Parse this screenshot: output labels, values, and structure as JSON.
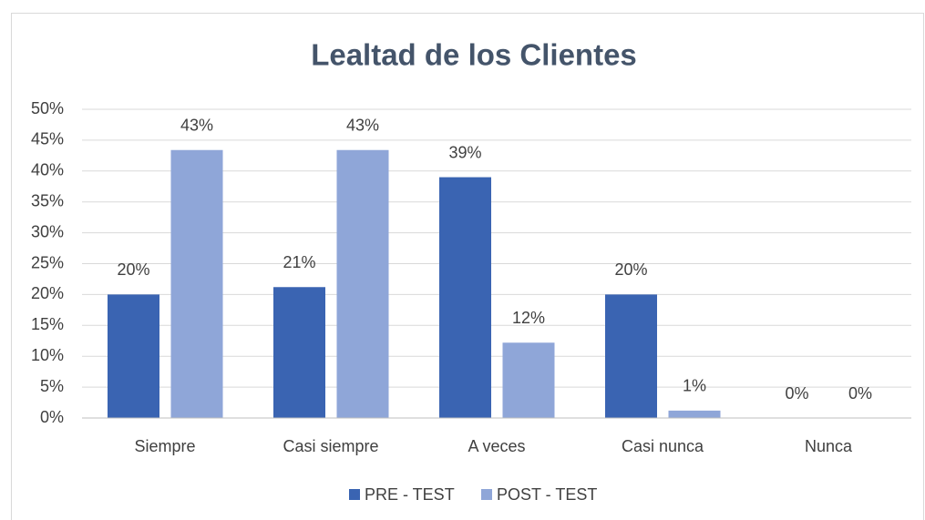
{
  "chart_data": {
    "type": "bar",
    "title": "Lealtad de los Clientes",
    "categories": [
      "Siempre",
      "Casi siempre",
      "A veces",
      "Casi nunca",
      "Nunca"
    ],
    "series": [
      {
        "name": "PRE - TEST",
        "color": "#3a64b2",
        "values": [
          20,
          21.2,
          39,
          20,
          0
        ],
        "value_labels": [
          "20%",
          "21%",
          "39%",
          "20%",
          "0%"
        ]
      },
      {
        "name": "POST - TEST",
        "color": "#8fa6d8",
        "values": [
          43.4,
          43.4,
          12.2,
          1.2,
          0
        ],
        "value_labels": [
          "43%",
          "43%",
          "12%",
          "1%",
          "0%"
        ]
      }
    ],
    "ylim": [
      0,
      50
    ],
    "yticks": [
      {
        "value": 0,
        "label": "0%"
      },
      {
        "value": 5,
        "label": "5%"
      },
      {
        "value": 10,
        "label": "10%"
      },
      {
        "value": 15,
        "label": "15%"
      },
      {
        "value": 20,
        "label": "20%"
      },
      {
        "value": 25,
        "label": "25%"
      },
      {
        "value": 30,
        "label": "30%"
      },
      {
        "value": 35,
        "label": "35%"
      },
      {
        "value": 40,
        "label": "40%"
      },
      {
        "value": 45,
        "label": "45%"
      },
      {
        "value": 50,
        "label": "50%"
      }
    ],
    "grid": true,
    "legend": "bottom"
  }
}
